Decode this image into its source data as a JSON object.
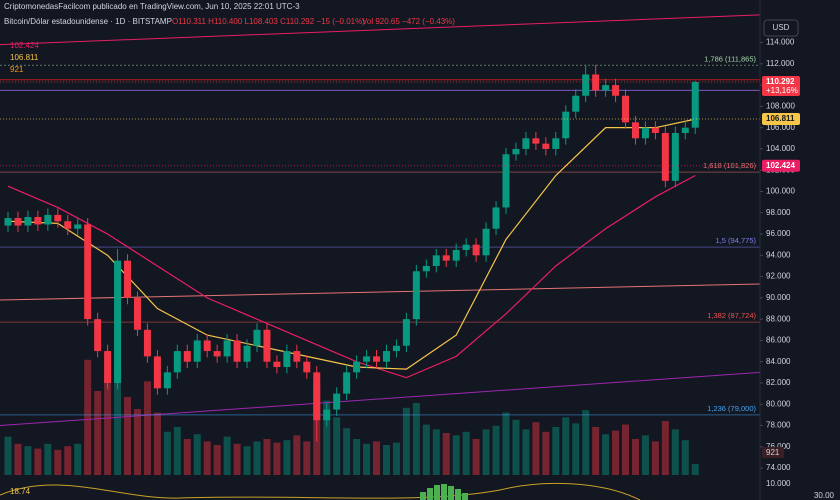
{
  "header": {
    "publisher": "CriptomonedasFacilcom publicado en TradingView.com, Jun 10, 2025 22:01 UTC-3",
    "symbol": "Bitcoin/Dólar estadounidense · 1D · BITSTAMP",
    "ohlc": "O110.311 H110.400 L108.403 C110.292 −15 (−0.01%)",
    "volume": "Vol 920.65 −472 (−0.43%)",
    "currency": "USD"
  },
  "chart_data": {
    "type": "candlestick",
    "ylim": [
      71,
      118
    ],
    "yticks": [
      {
        "value": 74,
        "label": "74.000"
      },
      {
        "value": 76,
        "label": "76.000"
      },
      {
        "value": 78,
        "label": "78.000"
      },
      {
        "value": 80,
        "label": "80.000"
      },
      {
        "value": 82,
        "label": "82.000"
      },
      {
        "value": 84,
        "label": "84.000"
      },
      {
        "value": 86,
        "label": "86.000"
      },
      {
        "value": 88,
        "label": "88.000"
      },
      {
        "value": 90,
        "label": "90.000"
      },
      {
        "value": 92,
        "label": "92.000"
      },
      {
        "value": 94,
        "label": "94.000"
      },
      {
        "value": 96,
        "label": "96.000"
      },
      {
        "value": 98,
        "label": "98.000"
      },
      {
        "value": 100,
        "label": "100.000"
      },
      {
        "value": 102,
        "label": "102.000"
      },
      {
        "value": 104,
        "label": "104.000"
      },
      {
        "value": 106,
        "label": "106.000"
      },
      {
        "value": 108,
        "label": "108.000"
      },
      {
        "value": 110,
        "label": "110.000"
      },
      {
        "value": 112,
        "label": "112.000"
      },
      {
        "value": 114,
        "label": "114.000"
      }
    ],
    "up_color": "#089981",
    "down_color": "#f23645",
    "open": [
      96.8,
      97.5,
      96.8,
      97.6,
      96.9,
      97.8,
      97.2,
      96.5,
      96.9,
      88.0,
      85.0,
      82.0,
      93.5,
      90.0,
      87.0,
      84.5,
      81.5,
      83.0,
      85.0,
      84.0,
      86.0,
      85.0,
      84.5,
      86.0,
      84.0,
      85.5,
      87.0,
      84.0,
      83.5,
      85.0,
      84.0,
      83.0,
      78.5,
      79.5,
      81.0,
      83.0,
      84.0,
      84.5,
      84.0,
      85.0,
      85.5,
      88.0,
      92.5,
      93.0,
      94.0,
      93.5,
      94.5,
      95.0,
      94.0,
      96.5,
      98.5,
      103.5,
      104.0,
      105.0,
      104.5,
      104.0,
      105.0,
      107.5,
      109.0,
      111.0,
      109.5,
      110.0,
      109.0,
      106.5,
      105.0,
      106.0,
      105.5,
      101.0,
      105.5,
      106.0
    ],
    "high": [
      98.1,
      98.1,
      98.2,
      98.2,
      98.4,
      98.4,
      97.8,
      97.5,
      97.5,
      88.6,
      85.6,
      94.6,
      94.1,
      90.6,
      87.6,
      85.1,
      83.6,
      85.6,
      85.6,
      86.6,
      86.6,
      85.6,
      86.6,
      86.6,
      86.1,
      87.6,
      87.6,
      84.6,
      85.6,
      85.6,
      84.6,
      83.6,
      80.1,
      81.6,
      83.6,
      84.6,
      85.1,
      85.1,
      85.6,
      86.1,
      88.6,
      93.1,
      93.6,
      94.6,
      94.6,
      95.1,
      95.6,
      95.6,
      97.1,
      99.1,
      104.1,
      104.6,
      105.6,
      105.6,
      105.1,
      105.6,
      108.1,
      109.6,
      111.9,
      111.9,
      110.6,
      110.6,
      109.6,
      107.1,
      106.6,
      106.6,
      106.1,
      106.1,
      106.6,
      110.4
    ],
    "low": [
      96.2,
      96.2,
      96.2,
      96.3,
      96.3,
      96.6,
      95.9,
      95.9,
      87.4,
      84.4,
      81.4,
      81.4,
      89.4,
      86.4,
      83.9,
      80.9,
      80.9,
      82.4,
      83.4,
      83.4,
      84.4,
      83.9,
      83.9,
      83.4,
      83.4,
      84.9,
      83.4,
      82.9,
      82.9,
      83.4,
      82.4,
      76.5,
      77.9,
      78.9,
      80.4,
      82.4,
      83.4,
      83.4,
      83.4,
      84.4,
      84.9,
      87.4,
      91.9,
      92.4,
      92.9,
      92.9,
      93.9,
      93.4,
      93.4,
      95.9,
      97.9,
      102.9,
      103.4,
      103.9,
      103.4,
      103.4,
      104.4,
      106.9,
      108.4,
      108.9,
      108.9,
      108.4,
      105.9,
      104.4,
      104.4,
      104.9,
      100.4,
      100.4,
      104.9,
      105.4
    ],
    "close": [
      97.5,
      96.8,
      97.6,
      96.9,
      97.8,
      97.2,
      96.5,
      96.9,
      88.0,
      85.0,
      82.0,
      93.5,
      90.0,
      87.0,
      84.5,
      81.5,
      83.0,
      85.0,
      84.0,
      86.0,
      85.0,
      84.5,
      86.0,
      84.0,
      85.5,
      87.0,
      84.0,
      83.5,
      85.0,
      84.0,
      83.0,
      78.5,
      79.5,
      81.0,
      83.0,
      84.0,
      84.5,
      84.0,
      85.0,
      85.5,
      88.0,
      92.5,
      93.0,
      94.0,
      93.5,
      94.5,
      95.0,
      94.0,
      96.5,
      98.5,
      103.5,
      104.0,
      105.0,
      104.5,
      104.0,
      105.0,
      107.5,
      109.0,
      111.0,
      109.5,
      110.0,
      109.0,
      106.5,
      105.0,
      106.0,
      105.5,
      101.0,
      105.5,
      106.0,
      110.292
    ],
    "volume": [
      3200,
      2600,
      2400,
      2200,
      2600,
      2100,
      2400,
      2600,
      9600,
      7000,
      8200,
      9000,
      6500,
      5500,
      7800,
      5200,
      3600,
      4000,
      3000,
      3400,
      2800,
      2500,
      3200,
      2600,
      2400,
      2800,
      3000,
      2700,
      2900,
      3300,
      2800,
      7500,
      6200,
      4800,
      3900,
      3000,
      2600,
      2800,
      2500,
      2700,
      5600,
      6000,
      4200,
      3800,
      3500,
      3300,
      3600,
      3000,
      3800,
      4100,
      5200,
      4600,
      3800,
      4400,
      3600,
      4000,
      4800,
      4300,
      5400,
      4000,
      3400,
      3700,
      4200,
      3000,
      3300,
      2800,
      4500,
      3800,
      2900,
      921
    ],
    "moving_averages": [
      {
        "color": "#e91e63",
        "x": [
          0,
          5,
          10,
          15,
          20,
          25,
          30,
          35,
          40,
          45,
          50,
          55,
          60,
          65,
          69
        ],
        "values": [
          100.5,
          98.5,
          96,
          93,
          90,
          88,
          86,
          84,
          82.5,
          84.5,
          88.5,
          93,
          96.5,
          99.5,
          101.5
        ]
      },
      {
        "color": "#f7c548",
        "x": [
          0,
          5,
          10,
          15,
          20,
          25,
          30,
          35,
          40,
          45,
          50,
          55,
          60,
          65,
          69
        ],
        "values": [
          97.2,
          97,
          94,
          89,
          86.5,
          85.5,
          84.5,
          83.5,
          83.3,
          86.5,
          95.5,
          101.5,
          106,
          106,
          106.8
        ]
      }
    ],
    "trendlines": [
      {
        "color": "#e91e63",
        "values": [
          113.8,
          116.6
        ]
      },
      {
        "color": "#e57373",
        "values": [
          89.8,
          91.3
        ]
      },
      {
        "color": "#9c27b0",
        "values": [
          78.0,
          83.0
        ]
      }
    ],
    "hlines": [
      {
        "value": 109.5,
        "color": "#7e57c2"
      },
      {
        "value": 110.5,
        "color": "#b71c1c"
      }
    ],
    "fib_levels": [
      {
        "value": 111.865,
        "label": "1,786 (111,865)",
        "color": "#a5d6a7"
      },
      {
        "value": 101.826,
        "label": "1,618 (101,826)",
        "color": "#e57373"
      },
      {
        "value": 94.775,
        "label": "1,5 (94,775)",
        "color": "#7e7ef0"
      },
      {
        "value": 87.724,
        "label": "1,382 (87,724)",
        "color": "#ef5350"
      },
      {
        "value": 79.0,
        "label": "1,236 (79,000)",
        "color": "#42a5f5"
      }
    ],
    "price_labels": [
      {
        "value": 110.292,
        "label": "110.292",
        "change": "+13,16%",
        "color": "#f23645"
      },
      {
        "value": 106.811,
        "label": "106.811",
        "color": "#f7c548"
      },
      {
        "value": 102.424,
        "label": "102.424",
        "color": "#e91e63"
      }
    ],
    "volume_label": "921",
    "oscillator_labels": [
      "18.74",
      "10.000",
      "30.00"
    ]
  }
}
